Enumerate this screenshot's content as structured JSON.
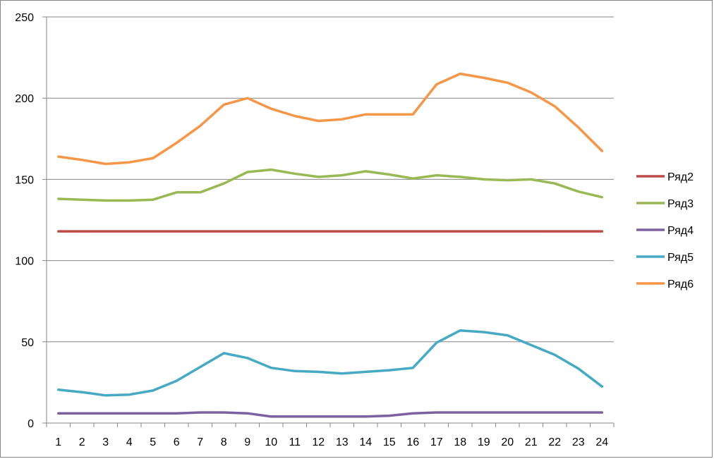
{
  "chart_data": {
    "type": "line",
    "title": "",
    "xlabel": "",
    "ylabel": "",
    "categories": [
      "1",
      "2",
      "3",
      "4",
      "5",
      "6",
      "7",
      "8",
      "9",
      "10",
      "11",
      "12",
      "13",
      "14",
      "15",
      "16",
      "17",
      "18",
      "19",
      "20",
      "21",
      "22",
      "23",
      "24"
    ],
    "ylim": [
      0,
      250
    ],
    "yticks": [
      0,
      50,
      100,
      150,
      200,
      250
    ],
    "grid": "horizontal",
    "legend_position": "right",
    "series": [
      {
        "name": "Ряд2",
        "color": "#be4b48",
        "values": [
          118,
          118,
          118,
          118,
          118,
          118,
          118,
          118,
          118,
          118,
          118,
          118,
          118,
          118,
          118,
          118,
          118,
          118,
          118,
          118,
          118,
          118,
          118,
          118
        ]
      },
      {
        "name": "Ряд3",
        "color": "#98b954",
        "values": [
          138,
          137.5,
          137,
          137,
          137.5,
          142,
          142,
          147.5,
          154.5,
          156,
          153.5,
          151.5,
          152.5,
          155,
          153,
          150.5,
          152.5,
          151.5,
          150,
          149.5,
          150,
          147.5,
          142.5,
          139
        ]
      },
      {
        "name": "Ряд4",
        "color": "#7d60a0",
        "values": [
          6,
          6,
          6,
          6,
          6,
          6,
          6.5,
          6.5,
          6,
          4,
          4,
          4,
          4,
          4,
          4.5,
          6,
          6.5,
          6.5,
          6.5,
          6.5,
          6.5,
          6.5,
          6.5,
          6.5
        ]
      },
      {
        "name": "Ряд5",
        "color": "#46aac5",
        "values": [
          20.5,
          19,
          17,
          17.5,
          20,
          26,
          34.5,
          43,
          40,
          34,
          32,
          31.5,
          30.5,
          31.5,
          32.5,
          34,
          49.5,
          57,
          56,
          54,
          48,
          42,
          33.5,
          22.5
        ]
      },
      {
        "name": "Ряд6",
        "color": "#f79646",
        "values": [
          164,
          162,
          159.5,
          160.5,
          163,
          172.5,
          183,
          196,
          200,
          193.5,
          189,
          186,
          187,
          190,
          190,
          190,
          208.5,
          215,
          212.5,
          209.5,
          203.5,
          195,
          182,
          167.5
        ]
      }
    ]
  }
}
